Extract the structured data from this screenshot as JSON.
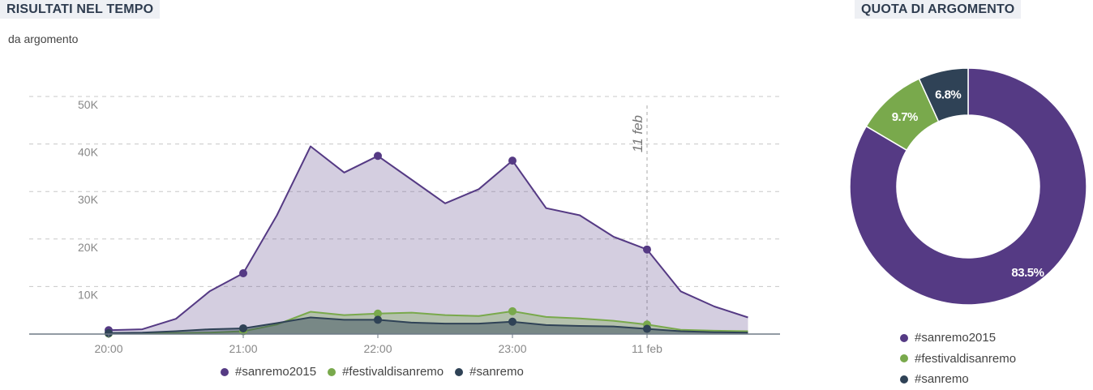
{
  "header": {
    "left_title": "RISULTATI NEL TEMPO",
    "right_title": "QUOTA DI ARGOMENTO",
    "subtitle": "da argomento"
  },
  "colors": {
    "sanremo2015": "#553a84",
    "festivaldisanremo": "#79a94c",
    "sanremo": "#2f4256",
    "grid": "#c8c8c8",
    "axis_text": "#888888"
  },
  "chart_data": [
    {
      "type": "area",
      "title": "",
      "xlabel": "",
      "ylabel": "",
      "x_tick_labels": [
        "20:00",
        "21:00",
        "22:00",
        "23:00",
        "11 feb"
      ],
      "y_tick_labels": [
        "10K",
        "20K",
        "30K",
        "40K",
        "50K"
      ],
      "ylim": [
        0,
        50000
      ],
      "grid": true,
      "annotation": "11 feb",
      "legend_position": "bottom",
      "x": [
        0,
        0.25,
        0.5,
        0.75,
        1,
        1.25,
        1.5,
        1.75,
        2,
        2.25,
        2.5,
        2.75,
        3,
        3.25,
        3.5,
        3.75,
        4,
        4.25,
        4.5,
        4.75
      ],
      "marker_indices": [
        0,
        4,
        8,
        12,
        16
      ],
      "series": [
        {
          "name": "#sanremo2015",
          "values": [
            800,
            1000,
            3200,
            9000,
            12800,
            25000,
            39500,
            34000,
            37500,
            32500,
            27500,
            30500,
            36500,
            26500,
            25000,
            20500,
            17800,
            9000,
            5800,
            3500
          ]
        },
        {
          "name": "#festivaldisanremo",
          "values": [
            100,
            100,
            200,
            300,
            600,
            2000,
            4700,
            4000,
            4300,
            4500,
            4000,
            3800,
            4800,
            3600,
            3300,
            2800,
            2000,
            900,
            700,
            600
          ]
        },
        {
          "name": "#sanremo",
          "values": [
            200,
            300,
            600,
            1000,
            1200,
            2300,
            3500,
            3000,
            3000,
            2400,
            2200,
            2200,
            2600,
            1900,
            1700,
            1600,
            1100,
            600,
            400,
            300
          ]
        }
      ]
    },
    {
      "type": "pie",
      "title": "",
      "categories": [
        "#sanremo2015",
        "#festivaldisanremo",
        "#sanremo"
      ],
      "values": [
        83.5,
        9.7,
        6.8
      ],
      "labels": [
        "83.5%",
        "9.7%",
        "6.8%"
      ],
      "legend_position": "bottom"
    }
  ]
}
